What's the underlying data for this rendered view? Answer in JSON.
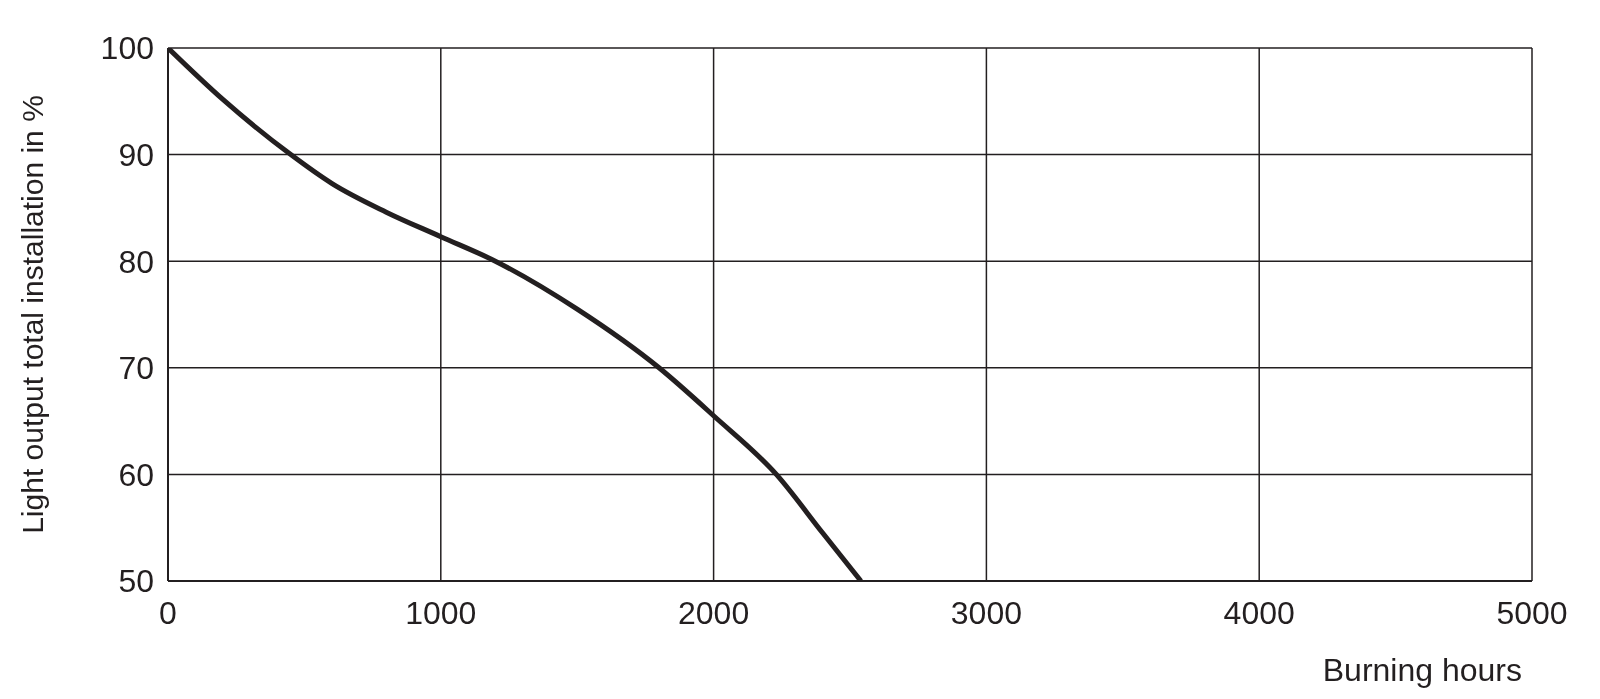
{
  "chart_data": {
    "type": "line",
    "xlabel": "Burning hours",
    "ylabel": "Light output total installation in %",
    "x": [
      0,
      200,
      450,
      600,
      800,
      1000,
      1200,
      1500,
      1800,
      2000,
      2230,
      2400,
      2540
    ],
    "series": [
      {
        "color": "#231f20",
        "values": [
          100,
          95.2,
          90,
          87.3,
          84.6,
          82.3,
          80,
          75.5,
          70,
          65.5,
          60,
          54.5,
          50
        ]
      }
    ],
    "xlim": [
      0,
      5000
    ],
    "xticks": [
      0,
      1000,
      2000,
      3000,
      4000,
      5000
    ],
    "ylim": [
      50,
      100
    ],
    "yticks": [
      50,
      60,
      70,
      80,
      90,
      100
    ],
    "grid": true,
    "legend": false,
    "marker": "none",
    "line_style": "solid"
  }
}
